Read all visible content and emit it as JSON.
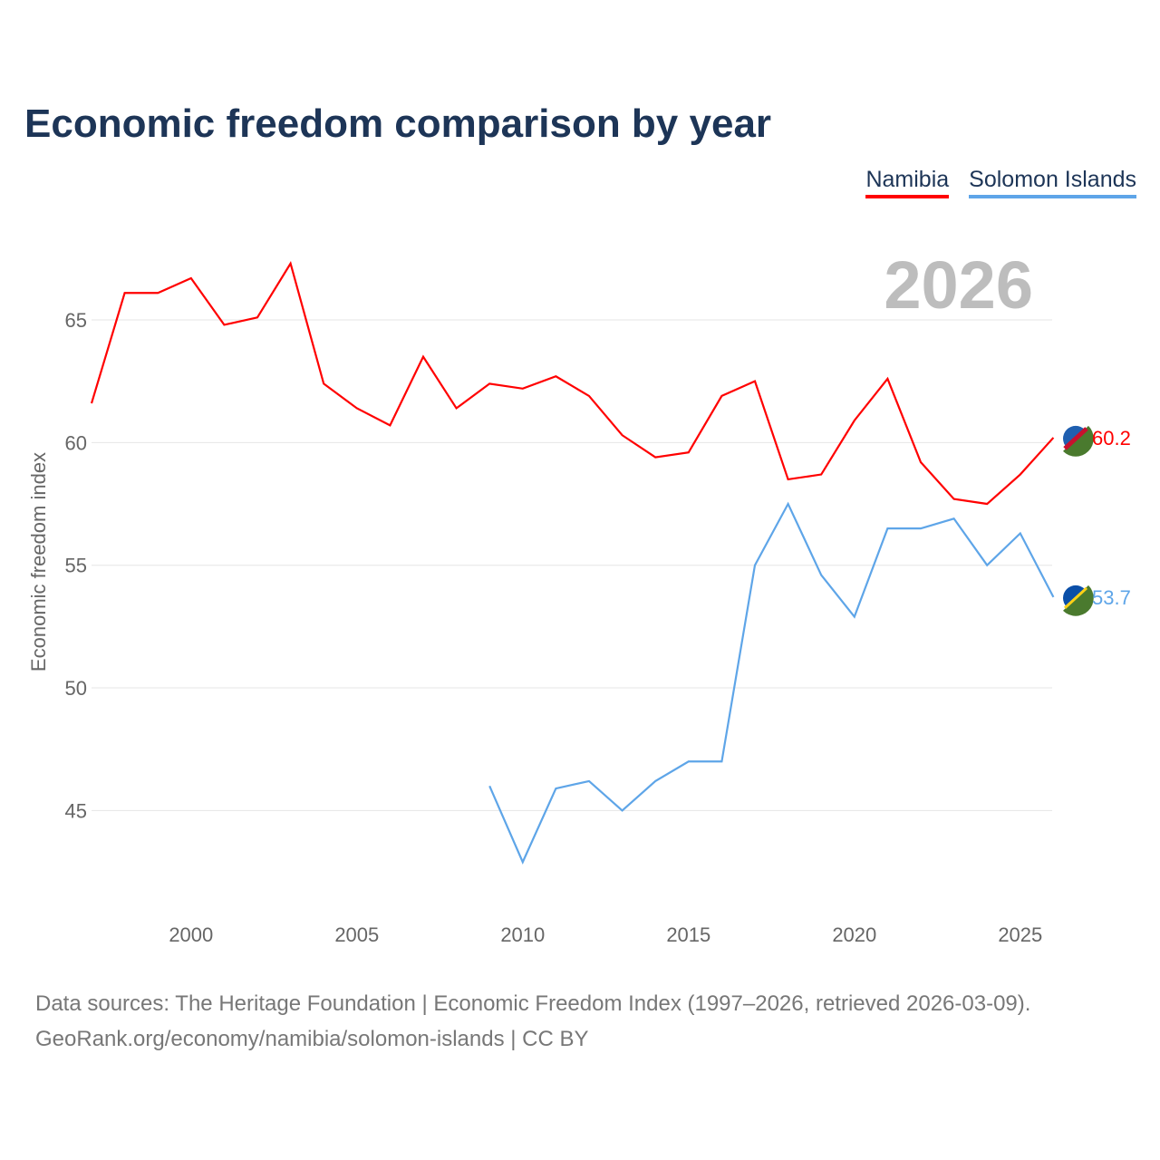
{
  "chart_data": {
    "type": "line",
    "title": "Economic freedom comparison by year",
    "ylabel": "Economic freedom index",
    "xlabel": "",
    "year_label": "2026",
    "xlim": [
      1997,
      2026
    ],
    "ylim": [
      41,
      69
    ],
    "yticks": [
      45,
      50,
      55,
      60,
      65
    ],
    "xticks": [
      2000,
      2005,
      2010,
      2015,
      2020,
      2025
    ],
    "series": [
      {
        "name": "Namibia",
        "color": "#ff0000",
        "end_label": "60.2",
        "x": [
          1997,
          1998,
          1999,
          2000,
          2001,
          2002,
          2003,
          2004,
          2005,
          2006,
          2007,
          2008,
          2009,
          2010,
          2011,
          2012,
          2013,
          2014,
          2015,
          2016,
          2017,
          2018,
          2019,
          2020,
          2021,
          2022,
          2023,
          2024,
          2025,
          2026
        ],
        "values": [
          61.6,
          66.1,
          66.1,
          66.7,
          64.8,
          65.1,
          67.3,
          62.4,
          61.4,
          60.7,
          63.5,
          61.4,
          62.4,
          62.2,
          62.7,
          61.9,
          60.3,
          59.4,
          59.6,
          61.9,
          62.5,
          58.5,
          58.7,
          60.9,
          62.6,
          59.2,
          57.7,
          57.5,
          58.7,
          60.2
        ]
      },
      {
        "name": "Solomon Islands",
        "color": "#5ea5e8",
        "end_label": "53.7",
        "x": [
          2009,
          2010,
          2011,
          2012,
          2013,
          2014,
          2015,
          2016,
          2017,
          2018,
          2019,
          2020,
          2021,
          2022,
          2023,
          2024,
          2025,
          2026
        ],
        "values": [
          46.0,
          42.9,
          45.9,
          46.2,
          45.0,
          46.2,
          47.0,
          47.0,
          55.0,
          57.5,
          54.6,
          52.9,
          56.5,
          56.5,
          56.9,
          55.0,
          56.3,
          53.7
        ]
      }
    ]
  },
  "source_line1": "Data sources: The Heritage Foundation | Economic Freedom Index (1997–2026, retrieved 2026-03-09).",
  "source_line2": "GeoRank.org/economy/namibia/solomon-islands | CC BY"
}
